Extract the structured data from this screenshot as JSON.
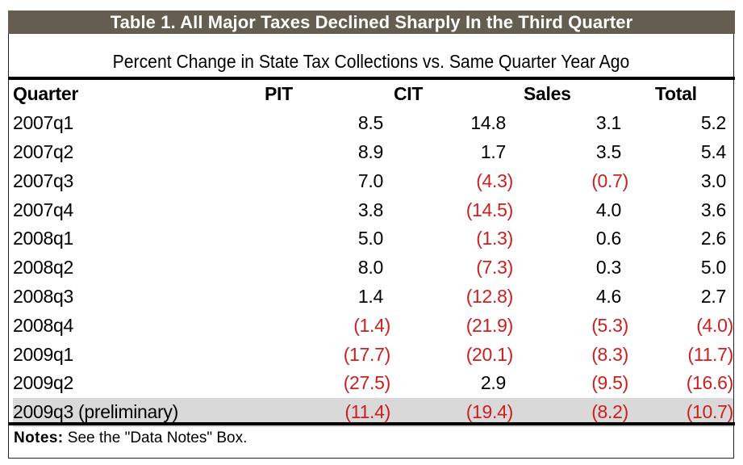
{
  "title": "Table 1. All Major Taxes Declined Sharply In the Third Quarter",
  "subtitle": "Percent Change in State Tax Collections vs. Same Quarter Year Ago",
  "columns": [
    "Quarter",
    "PIT",
    "CIT",
    "Sales",
    "Total"
  ],
  "rows": [
    {
      "quarter": "2007q1",
      "pit": "8.5",
      "cit": "14.8",
      "sales": "3.1",
      "total": "5.2",
      "neg": [
        false,
        false,
        false,
        false
      ]
    },
    {
      "quarter": "2007q2",
      "pit": "8.9",
      "cit": "1.7",
      "sales": "3.5",
      "total": "5.4",
      "neg": [
        false,
        false,
        false,
        false
      ]
    },
    {
      "quarter": "2007q3",
      "pit": "7.0",
      "cit": "(4.3)",
      "sales": "(0.7)",
      "total": "3.0",
      "neg": [
        false,
        true,
        true,
        false
      ]
    },
    {
      "quarter": "2007q4",
      "pit": "3.8",
      "cit": "(14.5)",
      "sales": "4.0",
      "total": "3.6",
      "neg": [
        false,
        true,
        false,
        false
      ]
    },
    {
      "quarter": "2008q1",
      "pit": "5.0",
      "cit": "(1.3)",
      "sales": "0.6",
      "total": "2.6",
      "neg": [
        false,
        true,
        false,
        false
      ]
    },
    {
      "quarter": "2008q2",
      "pit": "8.0",
      "cit": "(7.3)",
      "sales": "0.3",
      "total": "5.0",
      "neg": [
        false,
        true,
        false,
        false
      ]
    },
    {
      "quarter": "2008q3",
      "pit": "1.4",
      "cit": "(12.8)",
      "sales": "4.6",
      "total": "2.7",
      "neg": [
        false,
        true,
        false,
        false
      ]
    },
    {
      "quarter": "2008q4",
      "pit": "(1.4)",
      "cit": "(21.9)",
      "sales": "(5.3)",
      "total": "(4.0)",
      "neg": [
        true,
        true,
        true,
        true
      ]
    },
    {
      "quarter": "2009q1",
      "pit": "(17.7)",
      "cit": "(20.1)",
      "sales": "(8.3)",
      "total": "(11.7)",
      "neg": [
        true,
        true,
        true,
        true
      ]
    },
    {
      "quarter": "2009q2",
      "pit": "(27.5)",
      "cit": "2.9",
      "sales": "(9.5)",
      "total": "(16.6)",
      "neg": [
        true,
        false,
        true,
        true
      ]
    },
    {
      "quarter": "2009q3 (preliminary)",
      "pit": "(11.4)",
      "cit": "(19.4)",
      "sales": "(8.2)",
      "total": "(10.7)",
      "neg": [
        true,
        true,
        true,
        true
      ],
      "highlight": true
    }
  ],
  "notes": {
    "label": "Notes:",
    "text": " See the \"Data Notes\" Box."
  },
  "colors": {
    "title_bar": "#655d4f",
    "negative": "#cc1f1f",
    "highlight_row": "#d9d9d9"
  },
  "chart_data": {
    "type": "table",
    "title": "Table 1. All Major Taxes Declined Sharply In the Third Quarter",
    "subtitle": "Percent Change in State Tax Collections vs. Same Quarter Year Ago",
    "columns": [
      "Quarter",
      "PIT",
      "CIT",
      "Sales",
      "Total"
    ],
    "categories": [
      "2007q1",
      "2007q2",
      "2007q3",
      "2007q4",
      "2008q1",
      "2008q2",
      "2008q3",
      "2008q4",
      "2009q1",
      "2009q2",
      "2009q3 (preliminary)"
    ],
    "series": [
      {
        "name": "PIT",
        "values": [
          8.5,
          8.9,
          7.0,
          3.8,
          5.0,
          8.0,
          1.4,
          -1.4,
          -17.7,
          -27.5,
          -11.4
        ]
      },
      {
        "name": "CIT",
        "values": [
          14.8,
          1.7,
          -4.3,
          -14.5,
          -1.3,
          -7.3,
          -12.8,
          -21.9,
          -20.1,
          2.9,
          -19.4
        ]
      },
      {
        "name": "Sales",
        "values": [
          3.1,
          3.5,
          -0.7,
          4.0,
          0.6,
          0.3,
          4.6,
          -5.3,
          -8.3,
          -9.5,
          -8.2
        ]
      },
      {
        "name": "Total",
        "values": [
          5.2,
          5.4,
          3.0,
          3.6,
          2.6,
          5.0,
          2.7,
          -4.0,
          -11.7,
          -16.6,
          -10.7
        ]
      }
    ],
    "notes": "Notes: See the \"Data Notes\" Box."
  }
}
